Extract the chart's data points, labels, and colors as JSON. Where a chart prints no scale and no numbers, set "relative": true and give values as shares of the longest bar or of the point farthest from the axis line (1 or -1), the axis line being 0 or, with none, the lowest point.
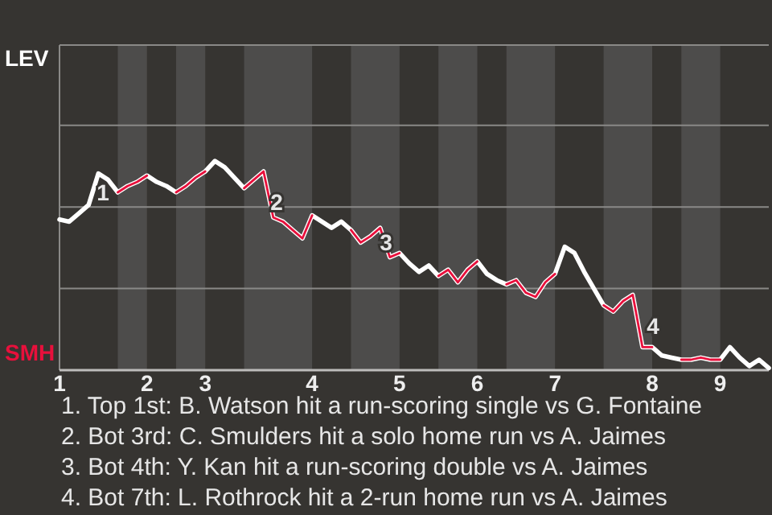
{
  "chart_data": {
    "type": "line",
    "relative": true,
    "legend": false,
    "ref_lines": [
      {
        "axis": "y",
        "value": 0.39,
        "color": "#8a8987"
      },
      {
        "axis": "y",
        "value": 0.78,
        "color": "#8a8987"
      },
      {
        "axis": "y",
        "value": 1.17,
        "color": "#8a8987"
      }
    ],
    "marker": "none",
    "line_style": "solid",
    "categories": [
      "1",
      null,
      null,
      null,
      null,
      null,
      null,
      null,
      null,
      "2",
      null,
      null,
      null,
      null,
      null,
      "3",
      null,
      null,
      null,
      null,
      null,
      null,
      null,
      null,
      null,
      null,
      "4",
      null,
      null,
      null,
      null,
      null,
      null,
      null,
      null,
      "5",
      null,
      null,
      null,
      null,
      null,
      null,
      null,
      "6",
      null,
      null,
      null,
      null,
      null,
      null,
      null,
      "7",
      null,
      null,
      null,
      null,
      null,
      null,
      null,
      null,
      null,
      "8",
      null,
      null,
      null,
      null,
      null,
      null,
      "9",
      null,
      null,
      null,
      null,
      null
    ],
    "series": [
      {
        "name": "LEV",
        "color": "#ffffff",
        "values": [
          0.72,
          0.71,
          0.75,
          0.79,
          0.94,
          0.91,
          0.85,
          0.88,
          0.9,
          0.93,
          0.9,
          0.88,
          0.85,
          0.88,
          0.92,
          0.95,
          1,
          0.97,
          0.92,
          0.87,
          0.91,
          0.95,
          0.73,
          0.71,
          0.67,
          0.63,
          0.74,
          0.71,
          0.68,
          0.71,
          0.67,
          0.61,
          0.64,
          0.68,
          0.54,
          0.56,
          0.51,
          0.47,
          0.5,
          0.45,
          0.48,
          0.42,
          0.48,
          0.52,
          0.46,
          0.43,
          0.41,
          0.43,
          0.37,
          0.35,
          0.42,
          0.46,
          0.59,
          0.56,
          0.47,
          0.39,
          0.31,
          0.28,
          0.33,
          0.36,
          0.11,
          0.11,
          0.07,
          0.06,
          0.05,
          0.05,
          0.06,
          0.05,
          0.05,
          0.11,
          0.06,
          0.02,
          0.05,
          0.01
        ]
      },
      {
        "name": "SMH",
        "color": "#e8103c",
        "values": [
          null,
          null,
          null,
          null,
          null,
          null,
          0.85,
          0.88,
          0.9,
          0.93,
          null,
          null,
          0.85,
          0.88,
          0.92,
          0.95,
          null,
          null,
          null,
          0.87,
          0.91,
          0.95,
          0.73,
          0.71,
          0.67,
          0.63,
          0.74,
          null,
          null,
          null,
          0.67,
          0.61,
          0.64,
          0.68,
          0.54,
          0.56,
          null,
          null,
          null,
          0.45,
          0.48,
          0.42,
          0.48,
          0.52,
          null,
          null,
          0.41,
          0.43,
          0.37,
          0.35,
          0.42,
          0.46,
          null,
          null,
          null,
          null,
          0.31,
          0.28,
          0.33,
          0.36,
          0.11,
          0.11,
          null,
          null,
          0.05,
          0.05,
          0.06,
          0.05,
          0.05,
          null,
          null,
          null,
          null,
          null
        ]
      }
    ],
    "annotations": [
      "1",
      "2",
      "3",
      "4",
      "1. Top 1st: B. Watson hit a run-scoring single vs G. Fontaine",
      "2. Bot 3rd: C. Smulders hit a solo home run vs A. Jaimes",
      "3. Bot 4th: Y. Kan hit a run-scoring double vs A. Jaimes",
      "4. Bot 7th: L. Rothrock hit a 2-run home run vs A. Jaimes"
    ]
  }
}
